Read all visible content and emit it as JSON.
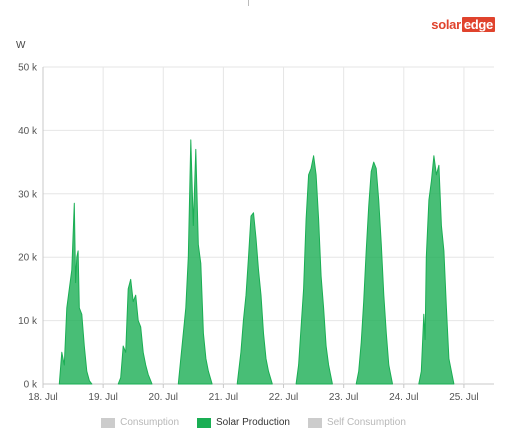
{
  "brand": {
    "part1": "solar",
    "part2": "edge"
  },
  "chart_data": {
    "type": "area",
    "ylabel": "W",
    "ylim": [
      0,
      50000
    ],
    "yticks": [
      {
        "value": 0,
        "label": "0 k"
      },
      {
        "value": 10000,
        "label": "10 k"
      },
      {
        "value": 20000,
        "label": "20 k"
      },
      {
        "value": 30000,
        "label": "30 k"
      },
      {
        "value": 40000,
        "label": "40 k"
      },
      {
        "value": 50000,
        "label": "50 k"
      }
    ],
    "xlim": [
      "18. Jul 00:00",
      "25. Jul 12:00"
    ],
    "xticks": [
      "18. Jul",
      "19. Jul",
      "20. Jul",
      "21. Jul",
      "22. Jul",
      "23. Jul",
      "24. Jul",
      "25. Jul"
    ],
    "grid": true,
    "legend_position": "bottom",
    "legend": [
      {
        "name": "Consumption",
        "color": "#cccccc",
        "active": false
      },
      {
        "name": "Solar Production",
        "color": "#1aae54",
        "active": true
      },
      {
        "name": "Self Consumption",
        "color": "#cccccc",
        "active": false
      }
    ],
    "series": [
      {
        "name": "Solar Production",
        "color": "#1aae54",
        "days": [
          {
            "day": "18. Jul",
            "points": [
              [
                6.5,
                0
              ],
              [
                7.5,
                5000
              ],
              [
                8.5,
                3000
              ],
              [
                9.5,
                12000
              ],
              [
                10.5,
                15000
              ],
              [
                11.5,
                18000
              ],
              [
                12.5,
                28500
              ],
              [
                13,
                16000
              ],
              [
                13.5,
                20000
              ],
              [
                14,
                21000
              ],
              [
                14.5,
                12000
              ],
              [
                15.5,
                11000
              ],
              [
                16.5,
                6000
              ],
              [
                17.5,
                2000
              ],
              [
                18.5,
                500
              ],
              [
                19.5,
                0
              ]
            ]
          },
          {
            "day": "19. Jul",
            "points": [
              [
                6,
                0
              ],
              [
                7,
                1000
              ],
              [
                8,
                6000
              ],
              [
                9,
                5000
              ],
              [
                10,
                15000
              ],
              [
                11,
                16500
              ],
              [
                12,
                13000
              ],
              [
                13,
                14000
              ],
              [
                14,
                10000
              ],
              [
                15,
                9000
              ],
              [
                16,
                5000
              ],
              [
                17,
                3000
              ],
              [
                18,
                1500
              ],
              [
                19.5,
                0
              ]
            ]
          },
          {
            "day": "20. Jul",
            "points": [
              [
                6,
                0
              ],
              [
                7,
                4000
              ],
              [
                8,
                8000
              ],
              [
                9,
                12000
              ],
              [
                10,
                20000
              ],
              [
                11,
                38500
              ],
              [
                12,
                25000
              ],
              [
                13,
                37000
              ],
              [
                14,
                22000
              ],
              [
                15,
                19000
              ],
              [
                16,
                8000
              ],
              [
                17,
                4000
              ],
              [
                18,
                2000
              ],
              [
                19.5,
                0
              ]
            ]
          },
          {
            "day": "21. Jul",
            "points": [
              [
                5.5,
                0
              ],
              [
                7,
                5000
              ],
              [
                8,
                10000
              ],
              [
                9,
                14000
              ],
              [
                10,
                20000
              ],
              [
                11,
                26500
              ],
              [
                12,
                27000
              ],
              [
                13,
                23000
              ],
              [
                14,
                18000
              ],
              [
                15,
                14000
              ],
              [
                16,
                8000
              ],
              [
                17,
                4000
              ],
              [
                18,
                2000
              ],
              [
                19.5,
                0
              ]
            ]
          },
          {
            "day": "22. Jul",
            "points": [
              [
                5,
                0
              ],
              [
                6,
                3000
              ],
              [
                7,
                9000
              ],
              [
                8,
                15000
              ],
              [
                9,
                26000
              ],
              [
                10,
                33000
              ],
              [
                11,
                34000
              ],
              [
                12,
                36000
              ],
              [
                13,
                33000
              ],
              [
                14,
                26000
              ],
              [
                15,
                17000
              ],
              [
                16,
                12000
              ],
              [
                17,
                6000
              ],
              [
                18,
                3000
              ],
              [
                19.5,
                0
              ]
            ]
          },
          {
            "day": "23. Jul",
            "points": [
              [
                5,
                0
              ],
              [
                6,
                2000
              ],
              [
                7,
                6500
              ],
              [
                8,
                13000
              ],
              [
                9,
                21000
              ],
              [
                10,
                28000
              ],
              [
                11,
                33500
              ],
              [
                12,
                35000
              ],
              [
                13,
                34000
              ],
              [
                14,
                29000
              ],
              [
                15,
                22000
              ],
              [
                16,
                14000
              ],
              [
                17,
                8000
              ],
              [
                18,
                3000
              ],
              [
                19.5,
                0
              ]
            ]
          },
          {
            "day": "24. Jul",
            "points": [
              [
                6,
                0
              ],
              [
                7,
                2000
              ],
              [
                8,
                11000
              ],
              [
                8.5,
                7000
              ],
              [
                9,
                20000
              ],
              [
                10,
                29000
              ],
              [
                11,
                32000
              ],
              [
                12,
                36000
              ],
              [
                13,
                33000
              ],
              [
                14,
                34500
              ],
              [
                15,
                25000
              ],
              [
                16,
                21000
              ],
              [
                17,
                12000
              ],
              [
                18,
                4000
              ],
              [
                19,
                2000
              ],
              [
                20,
                0
              ]
            ]
          }
        ]
      }
    ]
  }
}
